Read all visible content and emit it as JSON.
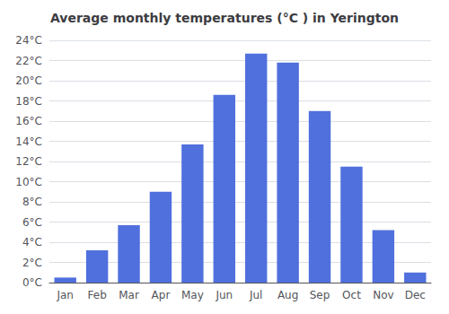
{
  "chart_data": {
    "type": "bar",
    "title": "Average monthly temperatures (°C ) in Yerington",
    "categories": [
      "Jan",
      "Feb",
      "Mar",
      "Apr",
      "May",
      "Jun",
      "Jul",
      "Aug",
      "Sep",
      "Oct",
      "Nov",
      "Dec"
    ],
    "values": [
      0.5,
      3.2,
      5.7,
      9.0,
      13.7,
      18.6,
      22.7,
      21.8,
      17.0,
      11.5,
      5.2,
      1.0
    ],
    "ylim": [
      0,
      24
    ],
    "yticks": [
      {
        "value": 0,
        "label": "0°C"
      },
      {
        "value": 2,
        "label": "2°C"
      },
      {
        "value": 4,
        "label": "4°C"
      },
      {
        "value": 6,
        "label": "6°C"
      },
      {
        "value": 8,
        "label": "8°C"
      },
      {
        "value": 10,
        "label": "10°C"
      },
      {
        "value": 12,
        "label": "12°C"
      },
      {
        "value": 14,
        "label": "14°C"
      },
      {
        "value": 16,
        "label": "16°C"
      },
      {
        "value": 18,
        "label": "18°C"
      },
      {
        "value": 20,
        "label": "20°C"
      },
      {
        "value": 22,
        "label": "22°C"
      },
      {
        "value": 24,
        "label": "24°C"
      }
    ],
    "grid": true
  }
}
